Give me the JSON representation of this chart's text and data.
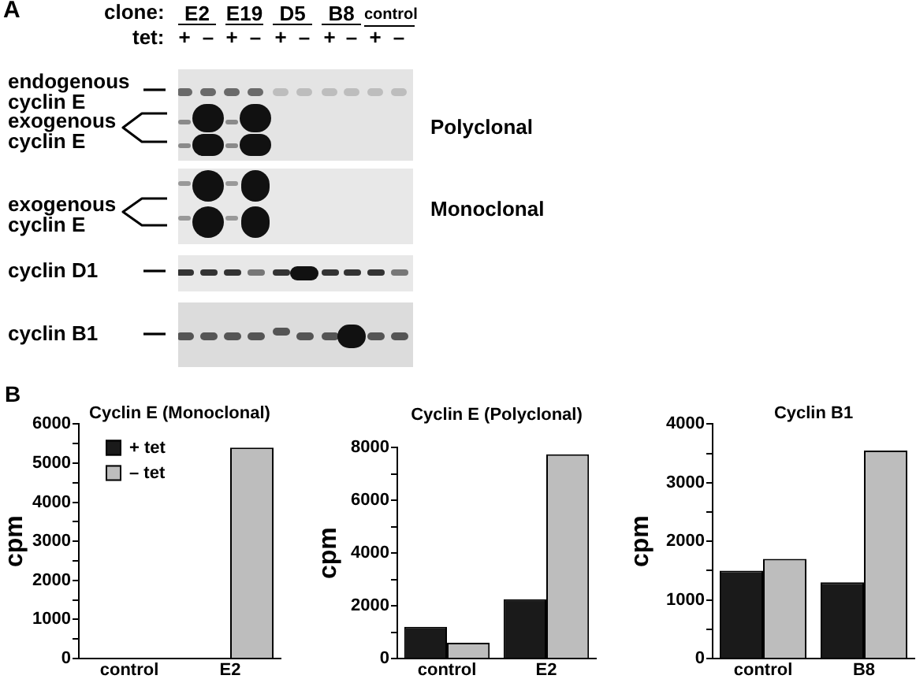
{
  "chart_data": [
    {
      "type": "other",
      "annotations": [
        "A",
        "clone:",
        "E2",
        "E19",
        "D5",
        "B8",
        "control",
        "tet:",
        "+",
        "–",
        "+",
        "–",
        "+",
        "–",
        "+",
        "–",
        "+",
        "–",
        "endogenous cyclin E",
        "exogenous cyclin E",
        "Polyclonal",
        "exogenous cyclin E",
        "Monoclonal",
        "cyclin D1",
        "cyclin B1"
      ]
    },
    {
      "type": "bar",
      "title": "Cyclin E (Monoclonal)",
      "ylabel": "cpm",
      "categories": [
        "control",
        "E2"
      ],
      "series": [
        {
          "name": "+ tet",
          "color": "#1a1a1a",
          "values": [
            0,
            0
          ]
        },
        {
          "name": "– tet",
          "color": "#bdbdbd",
          "values": [
            0,
            5400
          ]
        }
      ],
      "ylim": [
        0,
        6000
      ],
      "yticks": [
        0,
        {
          "value": 500,
          "label": null
        },
        1000,
        {
          "value": 1500,
          "label": null
        },
        2000,
        {
          "value": 2500,
          "label": null
        },
        3000,
        {
          "value": 3500,
          "label": null
        },
        4000,
        {
          "value": 4500,
          "label": null
        },
        5000,
        {
          "value": 5500,
          "label": null
        },
        6000
      ],
      "legend": "top left",
      "annotations": [
        "B"
      ]
    },
    {
      "type": "bar",
      "title": "Cyclin E (Polyclonal)",
      "ylabel": "cpm",
      "categories": [
        "control",
        "E2"
      ],
      "series": [
        {
          "color": "#1a1a1a",
          "values": [
            1200,
            2250
          ]
        },
        {
          "color": "#bdbdbd",
          "values": [
            600,
            7750
          ]
        }
      ],
      "ylim": [
        0,
        8000
      ],
      "yticks": [
        0,
        {
          "value": 1000,
          "label": null
        },
        2000,
        {
          "value": 3000,
          "label": null
        },
        4000,
        {
          "value": 5000,
          "label": null
        },
        6000,
        {
          "value": 7000,
          "label": null
        },
        8000
      ]
    },
    {
      "type": "bar",
      "title": "Cyclin B1",
      "ylabel": "cpm",
      "categories": [
        "control",
        "B8"
      ],
      "series": [
        {
          "color": "#1a1a1a",
          "values": [
            1500,
            1300
          ]
        },
        {
          "color": "#bdbdbd",
          "values": [
            1700,
            3550
          ]
        }
      ],
      "ylim": [
        0,
        4000
      ],
      "yticks": [
        0,
        {
          "value": 500,
          "label": null
        },
        1000,
        {
          "value": 1500,
          "label": null
        },
        2000,
        {
          "value": 2500,
          "label": null
        },
        3000,
        {
          "value": 3500,
          "label": null
        },
        4000
      ]
    }
  ]
}
